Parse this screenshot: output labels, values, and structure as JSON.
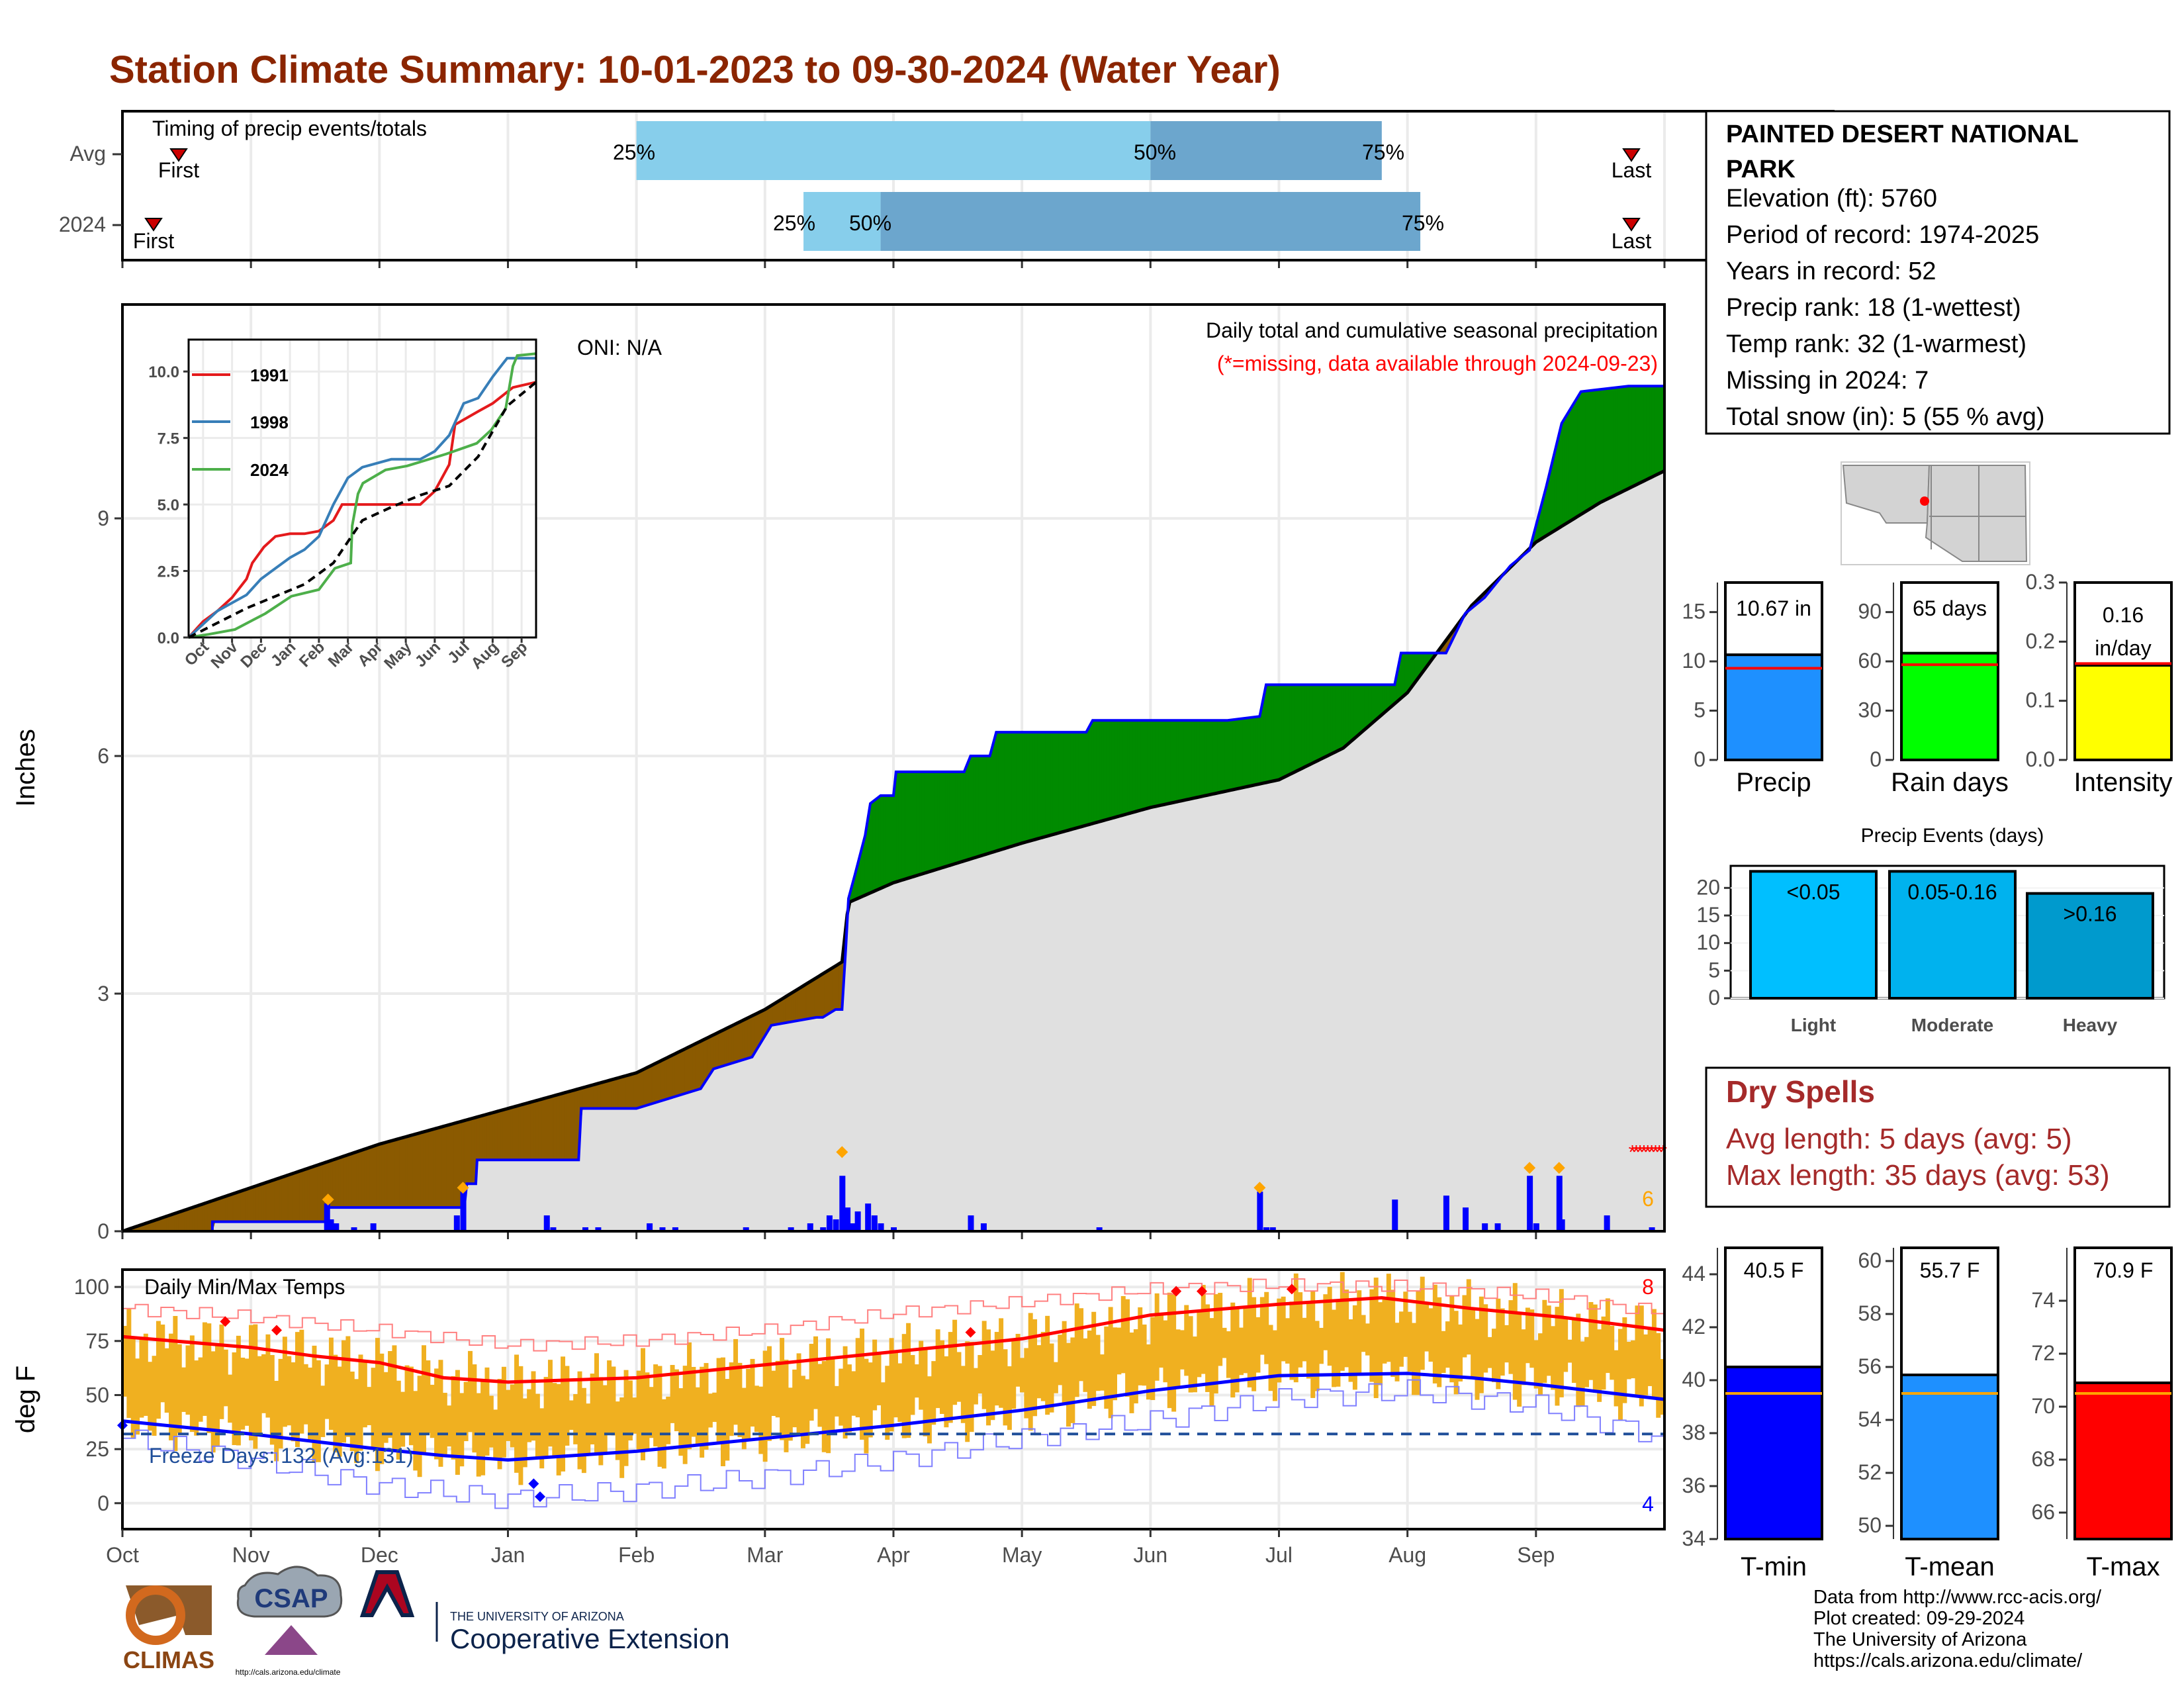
{
  "title": "Station Climate Summary: 10-01-2023 to 09-30-2024 (Water Year)",
  "colors": {
    "title": "#8b2500",
    "bar_light": "#87ceeb",
    "bar_dark": "#6ca6cd",
    "deficit": "#8b5a00",
    "surplus": "#008b00",
    "cum_fill": "#e0e0e0",
    "precip_bar": "#0000ff",
    "temp_bar": "#f0b020",
    "tmax_avg": "#ff0000",
    "tmin_avg": "#0000ff"
  },
  "timing": {
    "label": "Timing of precip events/totals",
    "rows": [
      {
        "name": "Avg",
        "first": "First",
        "last": "Last",
        "p25": "25%",
        "p50": "50%",
        "p75": "75%",
        "first_month": 0.46,
        "last_month": 11.8,
        "q25_month": 4.0,
        "q50_month": 8.0,
        "q75_month": 9.8
      },
      {
        "name": "2024",
        "first": "First",
        "last": "Last",
        "p25": "25%",
        "p50": "50%",
        "p75": "75%",
        "first_month": 0.25,
        "last_month": 11.8,
        "q25_month": 5.3,
        "q50_month": 5.9,
        "q75_month": 10.1
      }
    ]
  },
  "precip_panel": {
    "ylabel": "Inches",
    "yticks": [
      "0",
      "3",
      "6",
      "9"
    ],
    "ylim": [
      0,
      11.7
    ],
    "oni": "ONI: N/A",
    "caption": "Daily total and cumulative seasonal precipitation",
    "missing_note": "(*=missing, data available through 2024-09-23)",
    "extreme_count": "6",
    "cumulative_2024": [
      [
        0,
        0
      ],
      [
        0.7,
        0
      ],
      [
        0.7,
        0.12
      ],
      [
        1.58,
        0.12
      ],
      [
        1.6,
        0.3
      ],
      [
        2.66,
        0.3
      ],
      [
        2.68,
        0.6
      ],
      [
        2.75,
        0.6
      ],
      [
        2.76,
        0.9
      ],
      [
        3.55,
        0.9
      ],
      [
        3.57,
        1.55
      ],
      [
        4.0,
        1.55
      ],
      [
        4.5,
        1.8
      ],
      [
        4.6,
        2.05
      ],
      [
        4.9,
        2.2
      ],
      [
        5.05,
        2.6
      ],
      [
        5.4,
        2.7
      ],
      [
        5.45,
        2.7
      ],
      [
        5.55,
        2.8
      ],
      [
        5.6,
        2.8
      ],
      [
        5.63,
        3.6
      ],
      [
        5.65,
        4.2
      ],
      [
        5.7,
        4.5
      ],
      [
        5.78,
        5.0
      ],
      [
        5.82,
        5.4
      ],
      [
        5.9,
        5.5
      ],
      [
        6.0,
        5.5
      ],
      [
        6.02,
        5.8
      ],
      [
        6.55,
        5.8
      ],
      [
        6.6,
        6.0
      ],
      [
        6.75,
        6.0
      ],
      [
        6.8,
        6.3
      ],
      [
        7.5,
        6.3
      ],
      [
        7.55,
        6.45
      ],
      [
        8.6,
        6.45
      ],
      [
        8.85,
        6.5
      ],
      [
        8.9,
        6.9
      ],
      [
        9.9,
        6.9
      ],
      [
        9.95,
        7.3
      ],
      [
        10.3,
        7.3
      ],
      [
        10.45,
        7.8
      ],
      [
        10.6,
        8.0
      ],
      [
        10.8,
        8.4
      ],
      [
        10.95,
        8.6
      ],
      [
        11.08,
        9.4
      ],
      [
        11.2,
        10.2
      ],
      [
        11.35,
        10.6
      ],
      [
        11.72,
        10.67
      ],
      [
        12.0,
        10.67
      ]
    ],
    "cumulative_avg": [
      [
        0,
        0
      ],
      [
        1,
        0.55
      ],
      [
        2,
        1.1
      ],
      [
        3,
        1.55
      ],
      [
        4,
        2.0
      ],
      [
        5,
        2.8
      ],
      [
        5.6,
        3.4
      ],
      [
        5.65,
        4.15
      ],
      [
        6,
        4.4
      ],
      [
        7,
        4.9
      ],
      [
        8,
        5.35
      ],
      [
        9,
        5.7
      ],
      [
        9.5,
        6.1
      ],
      [
        10,
        6.8
      ],
      [
        10.5,
        7.9
      ],
      [
        11,
        8.7
      ],
      [
        11.5,
        9.2
      ],
      [
        12,
        9.6
      ]
    ],
    "daily": [
      [
        1.59,
        0.35
      ],
      [
        1.62,
        0.15
      ],
      [
        1.66,
        0.1
      ],
      [
        1.8,
        0.05
      ],
      [
        1.95,
        0.1
      ],
      [
        2.6,
        0.2
      ],
      [
        2.65,
        0.5
      ],
      [
        3.3,
        0.2
      ],
      [
        3.35,
        0.05
      ],
      [
        3.6,
        0.05
      ],
      [
        3.7,
        0.05
      ],
      [
        4.1,
        0.1
      ],
      [
        4.2,
        0.05
      ],
      [
        4.3,
        0.05
      ],
      [
        4.85,
        0.05
      ],
      [
        5.2,
        0.05
      ],
      [
        5.35,
        0.1
      ],
      [
        5.45,
        0.05
      ],
      [
        5.5,
        0.2
      ],
      [
        5.55,
        0.15
      ],
      [
        5.6,
        0.7
      ],
      [
        5.64,
        0.3
      ],
      [
        5.68,
        0.1
      ],
      [
        5.72,
        0.25
      ],
      [
        5.8,
        0.35
      ],
      [
        5.85,
        0.2
      ],
      [
        5.9,
        0.1
      ],
      [
        6.0,
        0.05
      ],
      [
        6.6,
        0.2
      ],
      [
        6.7,
        0.1
      ],
      [
        7.6,
        0.05
      ],
      [
        8.85,
        0.5
      ],
      [
        8.9,
        0.05
      ],
      [
        8.95,
        0.05
      ],
      [
        9.9,
        0.4
      ],
      [
        10.3,
        0.45
      ],
      [
        10.45,
        0.3
      ],
      [
        10.6,
        0.1
      ],
      [
        10.7,
        0.1
      ],
      [
        10.95,
        0.7
      ],
      [
        11.0,
        0.1
      ],
      [
        11.18,
        0.7
      ],
      [
        11.2,
        0.15
      ],
      [
        11.55,
        0.2
      ],
      [
        11.9,
        0.05
      ]
    ],
    "extreme_markers": [
      [
        1.6,
        0.4
      ],
      [
        2.65,
        0.55
      ],
      [
        5.6,
        1.0
      ],
      [
        8.85,
        0.55
      ],
      [
        10.95,
        0.8
      ],
      [
        11.18,
        0.8
      ]
    ],
    "missing_range": [
      11.75,
      12.0
    ]
  },
  "inset": {
    "yticks": [
      "0.0",
      "2.5",
      "5.0",
      "7.5",
      "10.0"
    ],
    "xticks": [
      "Oct",
      "Nov",
      "Dec",
      "Jan",
      "Feb",
      "Mar",
      "Apr",
      "May",
      "Jun",
      "Jul",
      "Aug",
      "Sep"
    ],
    "series": [
      {
        "name": "1991",
        "color": "#e41a1c",
        "values": [
          [
            0,
            0
          ],
          [
            0.5,
            0.6
          ],
          [
            1,
            1.0
          ],
          [
            1.5,
            1.5
          ],
          [
            2,
            2.2
          ],
          [
            2.2,
            2.8
          ],
          [
            2.6,
            3.4
          ],
          [
            3,
            3.8
          ],
          [
            3.5,
            3.9
          ],
          [
            4,
            3.9
          ],
          [
            4.5,
            4.0
          ],
          [
            5,
            4.4
          ],
          [
            5.3,
            5.0
          ],
          [
            6,
            5.0
          ],
          [
            7,
            5.0
          ],
          [
            8,
            5.0
          ],
          [
            8.5,
            5.5
          ],
          [
            9.0,
            6.5
          ],
          [
            9.2,
            8.0
          ],
          [
            10,
            8.5
          ],
          [
            10.5,
            8.8
          ],
          [
            11.2,
            9.4
          ],
          [
            12,
            9.6
          ]
        ]
      },
      {
        "name": "1998",
        "color": "#377eb8",
        "values": [
          [
            0,
            0
          ],
          [
            0.5,
            0.5
          ],
          [
            1,
            1.0
          ],
          [
            1.5,
            1.3
          ],
          [
            2,
            1.6
          ],
          [
            2.5,
            2.2
          ],
          [
            3,
            2.6
          ],
          [
            3.5,
            3.0
          ],
          [
            4,
            3.3
          ],
          [
            4.5,
            3.8
          ],
          [
            5,
            5.0
          ],
          [
            5.5,
            6.0
          ],
          [
            6,
            6.4
          ],
          [
            7,
            6.7
          ],
          [
            8,
            6.7
          ],
          [
            8.5,
            7.0
          ],
          [
            9,
            7.6
          ],
          [
            9.5,
            8.8
          ],
          [
            10,
            9.0
          ],
          [
            10.5,
            9.8
          ],
          [
            11,
            10.5
          ],
          [
            12,
            10.5
          ]
        ]
      },
      {
        "name": "2024",
        "color": "#4daf4a",
        "values": [
          [
            0,
            0
          ],
          [
            0.7,
            0.12
          ],
          [
            1.6,
            0.3
          ],
          [
            2.65,
            0.9
          ],
          [
            3.55,
            1.55
          ],
          [
            4.5,
            1.8
          ],
          [
            5.05,
            2.6
          ],
          [
            5.6,
            2.8
          ],
          [
            5.65,
            4.2
          ],
          [
            5.85,
            5.4
          ],
          [
            6.02,
            5.8
          ],
          [
            6.8,
            6.3
          ],
          [
            7.55,
            6.45
          ],
          [
            8.9,
            6.9
          ],
          [
            9.95,
            7.3
          ],
          [
            10.45,
            7.8
          ],
          [
            10.95,
            8.6
          ],
          [
            11.2,
            10.2
          ],
          [
            11.35,
            10.6
          ],
          [
            12,
            10.67
          ]
        ]
      }
    ],
    "avg_values": [
      [
        0,
        0
      ],
      [
        1,
        0.55
      ],
      [
        2,
        1.1
      ],
      [
        3,
        1.55
      ],
      [
        4,
        2.0
      ],
      [
        5,
        2.8
      ],
      [
        6,
        4.4
      ],
      [
        7,
        4.9
      ],
      [
        8,
        5.35
      ],
      [
        9,
        5.7
      ],
      [
        10,
        6.8
      ],
      [
        11,
        8.7
      ],
      [
        12,
        9.6
      ]
    ]
  },
  "temp_panel": {
    "ylabel": "deg F",
    "title": "Daily Min/Max Temps",
    "yticks": [
      "0",
      "25",
      "50",
      "75",
      "100"
    ],
    "ylim": [
      -12,
      108
    ],
    "freeze": "Freeze Days: 132 (Avg:131)",
    "freeze_line": 32,
    "max_count": "8",
    "min_count": "4",
    "avg_tmax": [
      [
        0,
        77
      ],
      [
        1,
        72
      ],
      [
        1.5,
        68
      ],
      [
        2,
        65
      ],
      [
        2.5,
        58
      ],
      [
        3,
        56
      ],
      [
        4,
        58
      ],
      [
        5,
        64
      ],
      [
        6,
        70
      ],
      [
        7,
        76
      ],
      [
        8,
        87
      ],
      [
        9,
        92
      ],
      [
        9.8,
        95
      ],
      [
        10.5,
        90
      ],
      [
        11.2,
        86
      ],
      [
        12,
        80
      ]
    ],
    "avg_tmin": [
      [
        0,
        38
      ],
      [
        1,
        32
      ],
      [
        2,
        25
      ],
      [
        2.5,
        22
      ],
      [
        3,
        20
      ],
      [
        4,
        24
      ],
      [
        5,
        30
      ],
      [
        6,
        36
      ],
      [
        7,
        43
      ],
      [
        8,
        52
      ],
      [
        9,
        59
      ],
      [
        10,
        60
      ],
      [
        10.5,
        58
      ],
      [
        11,
        55
      ],
      [
        12,
        48
      ]
    ],
    "rec_tmax": [
      [
        0,
        90
      ],
      [
        1,
        86
      ],
      [
        2,
        80
      ],
      [
        3,
        73
      ],
      [
        4,
        75
      ],
      [
        5,
        80
      ],
      [
        6,
        88
      ],
      [
        7,
        93
      ],
      [
        8,
        99
      ],
      [
        9,
        101
      ],
      [
        10,
        100
      ],
      [
        11,
        96
      ],
      [
        12,
        88
      ]
    ],
    "rec_tmin": [
      [
        0,
        30
      ],
      [
        1,
        20
      ],
      [
        2,
        8
      ],
      [
        3,
        2
      ],
      [
        4,
        6
      ],
      [
        5,
        12
      ],
      [
        6,
        20
      ],
      [
        7,
        30
      ],
      [
        8,
        38
      ],
      [
        9,
        48
      ],
      [
        10,
        52
      ],
      [
        11,
        45
      ],
      [
        12,
        30
      ]
    ],
    "tmax_markers": [
      [
        0.8,
        84
      ],
      [
        1.2,
        80
      ],
      [
        6.6,
        79
      ],
      [
        8.2,
        98
      ],
      [
        8.4,
        98
      ],
      [
        9.1,
        99
      ]
    ],
    "tmin_markers": [
      [
        0,
        36
      ],
      [
        3.2,
        9
      ],
      [
        3.25,
        3
      ]
    ]
  },
  "xaxis_months": [
    "Oct",
    "Nov",
    "Dec",
    "Jan",
    "Feb",
    "Mar",
    "Apr",
    "May",
    "Jun",
    "Jul",
    "Aug",
    "Sep"
  ],
  "station": {
    "name_line1": "PAINTED DESERT NATIONAL",
    "name_line2": "PARK",
    "lines": [
      "Elevation (ft): 5760",
      "Period of record: 1974-2025",
      "Years in record: 52",
      "Precip rank: 18 (1-wettest)",
      "Temp rank: 32 (1-warmest)",
      "Missing in 2024: 7",
      "Total snow (in): 5 (55 % avg)"
    ]
  },
  "summary_bars": [
    {
      "name": "Precip",
      "value": 10.67,
      "label": "10.67 in",
      "avg": 9.3,
      "ylim": [
        0,
        18
      ],
      "yticks": [
        "0",
        "5",
        "10",
        "15"
      ],
      "tick_values": [
        0,
        5,
        10,
        15
      ],
      "color": "#1e90ff"
    },
    {
      "name": "Rain days",
      "value": 65,
      "label": "65 days",
      "avg": 58,
      "ylim": [
        0,
        108
      ],
      "yticks": [
        "0",
        "30",
        "60",
        "90"
      ],
      "tick_values": [
        0,
        30,
        60,
        90
      ],
      "color": "#00ff00"
    },
    {
      "name": "Intensity",
      "value": 0.16,
      "label": "0.16",
      "label2": "in/day",
      "avg": 0.163,
      "ylim": [
        0,
        0.3
      ],
      "yticks": [
        "0.0",
        "0.1",
        "0.2",
        "0.3"
      ],
      "tick_values": [
        0,
        0.1,
        0.2,
        0.3
      ],
      "color": "#ffff00"
    }
  ],
  "precip_events": {
    "title": "Precip Events (days)",
    "yticks": [
      "0",
      "5",
      "10",
      "15",
      "20"
    ],
    "ylim": [
      0,
      24
    ],
    "bars": [
      {
        "name": "Light",
        "label": "<0.05",
        "value": 23,
        "color": "#00bfff"
      },
      {
        "name": "Moderate",
        "label": "0.05-0.16",
        "value": 23,
        "color": "#00b2ee"
      },
      {
        "name": "Heavy",
        "label": ">0.16",
        "value": 19,
        "color": "#009acd"
      }
    ]
  },
  "dry_spells": {
    "title": "Dry Spells",
    "avg_length": "Avg length: 5 days (avg: 5)",
    "max_length": "Max length: 35 days (avg: 53)"
  },
  "temp_bars": [
    {
      "name": "T-min",
      "value": 40.5,
      "label": "40.5 F",
      "avg": 39.5,
      "ylim": [
        34,
        45
      ],
      "yticks": [
        "34",
        "36",
        "38",
        "40",
        "42",
        "44"
      ],
      "tick_values": [
        34,
        36,
        38,
        40,
        42,
        44
      ],
      "color": "#0000ff"
    },
    {
      "name": "T-mean",
      "value": 55.7,
      "label": "55.7 F",
      "avg": 55.0,
      "ylim": [
        49.5,
        60.5
      ],
      "yticks": [
        "50",
        "52",
        "54",
        "56",
        "58",
        "60"
      ],
      "tick_values": [
        50,
        52,
        54,
        56,
        58,
        60
      ],
      "color": "#1e90ff"
    },
    {
      "name": "T-max",
      "value": 70.9,
      "label": "70.9 F",
      "avg": 70.5,
      "ylim": [
        65,
        76
      ],
      "yticks": [
        "66",
        "68",
        "70",
        "72",
        "74"
      ],
      "tick_values": [
        66,
        68,
        70,
        72,
        74
      ],
      "color": "#ff0000"
    }
  ],
  "credits": [
    "Data from http://www.rcc-acis.org/",
    "Plot created: 09-29-2024",
    "The University of Arizona",
    "https://cals.arizona.edu/climate/"
  ],
  "logos": {
    "climas": "CLIMAS",
    "csap": "CSAP",
    "csap_url": "http://cals.arizona.edu/climate",
    "ua_line1": "THE UNIVERSITY OF ARIZONA",
    "ua_line2": "Cooperative Extension"
  }
}
